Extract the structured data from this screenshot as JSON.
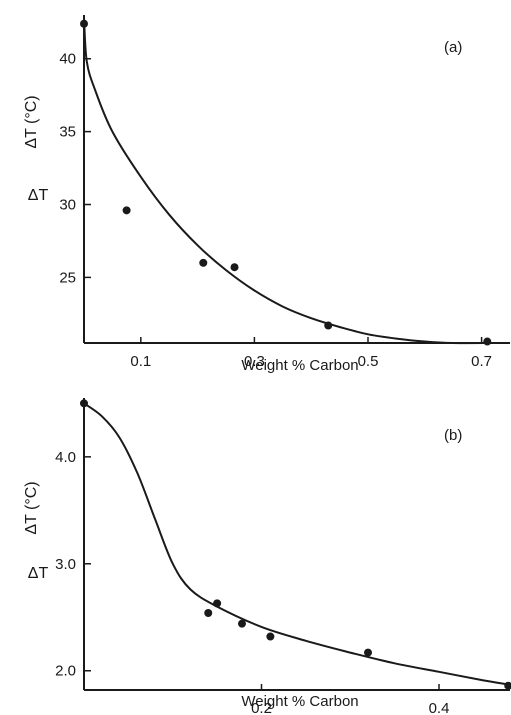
{
  "chart_data": [
    {
      "type": "scatter",
      "panel_label": "(a)",
      "xlabel": "Weight % Carbon",
      "ylabel": "ΔT (°C)",
      "ylabel_secondary": "ΔT",
      "xlim": [
        0,
        0.75
      ],
      "ylim": [
        20.5,
        43
      ],
      "x_ticks": [
        0.1,
        0.3,
        0.5,
        0.7
      ],
      "x_tick_labels": [
        "0.1",
        "0.3",
        "0.5",
        "0.7"
      ],
      "y_ticks": [
        25,
        30,
        35,
        40
      ],
      "y_tick_labels": [
        "25",
        "30",
        "35",
        "40"
      ],
      "grid": false,
      "series": [
        {
          "points": [
            {
              "x": 0.0,
              "y": 42.4
            },
            {
              "x": 0.075,
              "y": 29.6
            },
            {
              "x": 0.21,
              "y": 26.0
            },
            {
              "x": 0.265,
              "y": 25.7
            },
            {
              "x": 0.43,
              "y": 21.7
            },
            {
              "x": 0.71,
              "y": 20.6
            }
          ],
          "fit_curve": [
            {
              "x": 0.0,
              "y": 42.8
            },
            {
              "x": 0.005,
              "y": 39.8
            },
            {
              "x": 0.02,
              "y": 37.8
            },
            {
              "x": 0.05,
              "y": 35.0
            },
            {
              "x": 0.1,
              "y": 31.9
            },
            {
              "x": 0.15,
              "y": 29.3
            },
            {
              "x": 0.2,
              "y": 27.2
            },
            {
              "x": 0.25,
              "y": 25.5
            },
            {
              "x": 0.3,
              "y": 24.1
            },
            {
              "x": 0.35,
              "y": 23.0
            },
            {
              "x": 0.4,
              "y": 22.2
            },
            {
              "x": 0.45,
              "y": 21.6
            },
            {
              "x": 0.5,
              "y": 21.1
            },
            {
              "x": 0.55,
              "y": 20.8
            },
            {
              "x": 0.6,
              "y": 20.6
            },
            {
              "x": 0.65,
              "y": 20.5
            },
            {
              "x": 0.72,
              "y": 20.5
            }
          ]
        }
      ]
    },
    {
      "type": "scatter",
      "panel_label": "(b)",
      "xlabel": "Weight % Carbon",
      "ylabel": "ΔT (°C)",
      "ylabel_secondary": "ΔT",
      "xlim": [
        0,
        0.48
      ],
      "ylim": [
        1.82,
        4.55
      ],
      "x_ticks": [
        0.2,
        0.4
      ],
      "x_tick_labels": [
        "0.2",
        "0.4"
      ],
      "y_ticks": [
        2.0,
        3.0,
        4.0
      ],
      "y_tick_labels": [
        "2.0",
        "3.0",
        "4.0"
      ],
      "grid": false,
      "series": [
        {
          "points": [
            {
              "x": 0.0,
              "y": 4.5
            },
            {
              "x": 0.14,
              "y": 2.54
            },
            {
              "x": 0.15,
              "y": 2.63
            },
            {
              "x": 0.178,
              "y": 2.44
            },
            {
              "x": 0.21,
              "y": 2.32
            },
            {
              "x": 0.32,
              "y": 2.17
            },
            {
              "x": 0.478,
              "y": 1.86
            }
          ],
          "fit_curve": [
            {
              "x": 0.0,
              "y": 4.5
            },
            {
              "x": 0.02,
              "y": 4.38
            },
            {
              "x": 0.04,
              "y": 4.18
            },
            {
              "x": 0.06,
              "y": 3.85
            },
            {
              "x": 0.08,
              "y": 3.42
            },
            {
              "x": 0.1,
              "y": 3.0
            },
            {
              "x": 0.12,
              "y": 2.76
            },
            {
              "x": 0.15,
              "y": 2.6
            },
            {
              "x": 0.2,
              "y": 2.41
            },
            {
              "x": 0.25,
              "y": 2.28
            },
            {
              "x": 0.3,
              "y": 2.17
            },
            {
              "x": 0.35,
              "y": 2.07
            },
            {
              "x": 0.4,
              "y": 1.99
            },
            {
              "x": 0.45,
              "y": 1.91
            },
            {
              "x": 0.48,
              "y": 1.87
            }
          ]
        }
      ]
    }
  ]
}
